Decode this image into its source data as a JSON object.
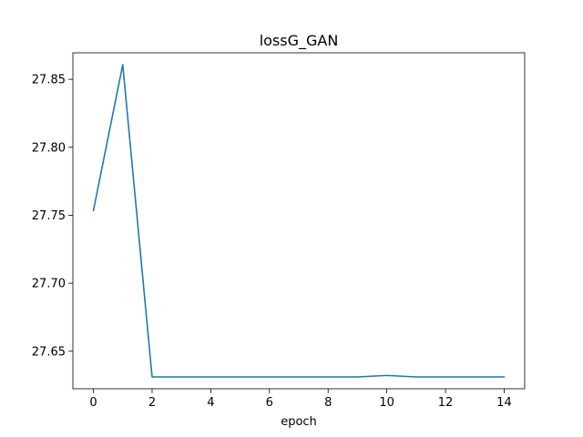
{
  "chart_data": {
    "type": "line",
    "title": "lossG_GAN",
    "xlabel": "epoch",
    "ylabel": "",
    "xlim": [
      -0.7,
      14.7
    ],
    "ylim": [
      27.6224,
      27.8695
    ],
    "xticks": [
      0,
      2,
      4,
      6,
      8,
      10,
      12,
      14
    ],
    "xtick_labels": [
      "0",
      "2",
      "4",
      "6",
      "8",
      "10",
      "12",
      "14"
    ],
    "yticks": [
      27.65,
      27.7,
      27.75,
      27.8,
      27.85
    ],
    "ytick_labels": [
      "27.65",
      "27.70",
      "27.75",
      "27.80",
      "27.85"
    ],
    "grid": false,
    "series": [
      {
        "color": "#1f77b4",
        "x": [
          0,
          1,
          2,
          3,
          4,
          5,
          6,
          7,
          8,
          9,
          10,
          11,
          12,
          13,
          14
        ],
        "y": [
          27.7535,
          27.8608,
          27.6311,
          27.6311,
          27.6311,
          27.6311,
          27.6311,
          27.6311,
          27.6311,
          27.6311,
          27.6322,
          27.6311,
          27.6311,
          27.6311,
          27.6311
        ]
      }
    ]
  }
}
